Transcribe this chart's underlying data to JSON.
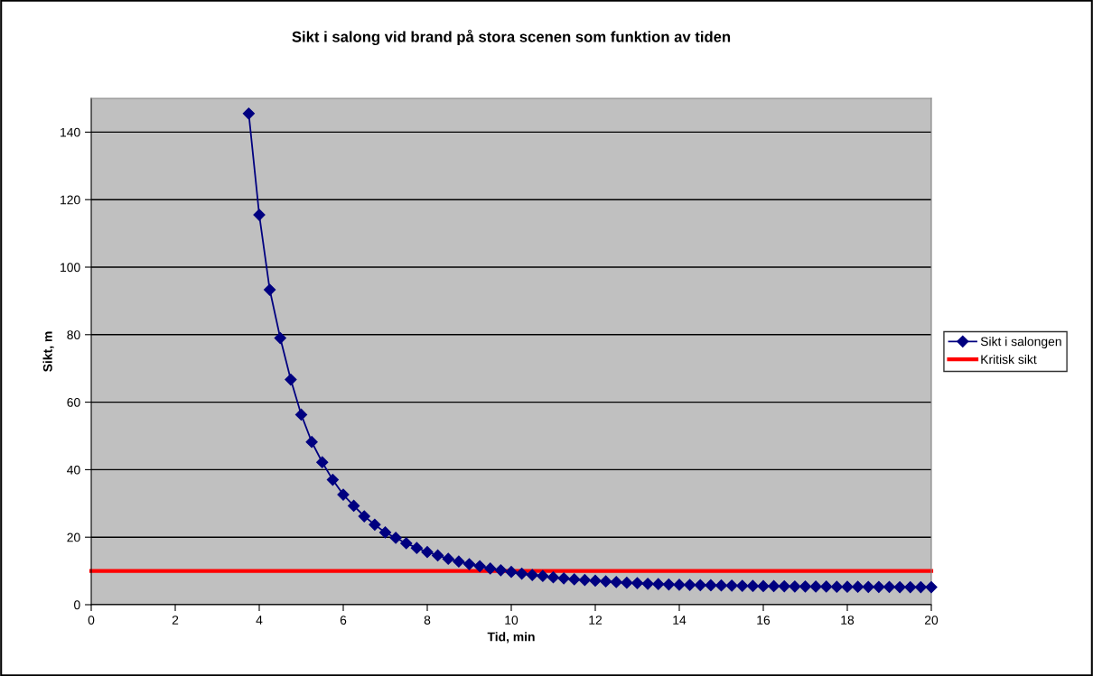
{
  "chart_data": {
    "type": "line",
    "title": "Sikt i salong vid brand på stora scenen som funktion av tiden",
    "xlabel": "Tid, min",
    "ylabel": "Sikt, m",
    "xlim": [
      0,
      20
    ],
    "xticks": [
      0,
      2,
      4,
      6,
      8,
      10,
      12,
      14,
      16,
      18,
      20
    ],
    "ylim": [
      0,
      150
    ],
    "yticks": [
      0,
      20,
      40,
      60,
      80,
      100,
      120,
      140
    ],
    "grid": "y",
    "legend": "right",
    "series": [
      {
        "name": "Sikt i salongen",
        "color": "#000080",
        "marker": "diamond",
        "x": [
          3.75,
          4,
          4.25,
          4.5,
          4.75,
          5,
          5.25,
          5.5,
          5.75,
          6,
          6.25,
          6.5,
          6.75,
          7,
          7.25,
          7.5,
          7.75,
          8,
          8.25,
          8.5,
          8.75,
          9,
          9.25,
          9.5,
          9.75,
          10,
          10.25,
          10.5,
          10.75,
          11,
          11.25,
          11.5,
          11.75,
          12,
          12.25,
          12.5,
          12.75,
          13,
          13.25,
          13.5,
          13.75,
          14,
          14.25,
          14.5,
          14.75,
          15,
          15.25,
          15.5,
          15.75,
          16,
          16.25,
          16.5,
          16.75,
          17,
          17.25,
          17.5,
          17.75,
          18,
          18.25,
          18.5,
          18.75,
          19,
          19.25,
          19.5,
          19.75,
          20
        ],
        "values": [
          145.5,
          115.5,
          93.3,
          79,
          66.7,
          56.3,
          48.2,
          42.2,
          37,
          32.6,
          29.3,
          26.2,
          23.7,
          21.4,
          19.8,
          18.2,
          16.8,
          15.6,
          14.6,
          13.6,
          12.8,
          12.0,
          11.4,
          10.7,
          10.2,
          9.7,
          9.2,
          8.8,
          8.5,
          8.1,
          7.8,
          7.5,
          7.3,
          7.1,
          6.9,
          6.7,
          6.5,
          6.4,
          6.2,
          6.1,
          6.0,
          5.9,
          5.85,
          5.8,
          5.75,
          5.7,
          5.65,
          5.6,
          5.55,
          5.5,
          5.5,
          5.45,
          5.4,
          5.4,
          5.35,
          5.35,
          5.3,
          5.3,
          5.3,
          5.25,
          5.25,
          5.25,
          5.2,
          5.2,
          5.2,
          5.2
        ]
      },
      {
        "name": "Kritisk sikt",
        "color": "#ff0000",
        "marker": "none",
        "x": [
          0,
          20
        ],
        "values": [
          10,
          10
        ]
      }
    ]
  }
}
